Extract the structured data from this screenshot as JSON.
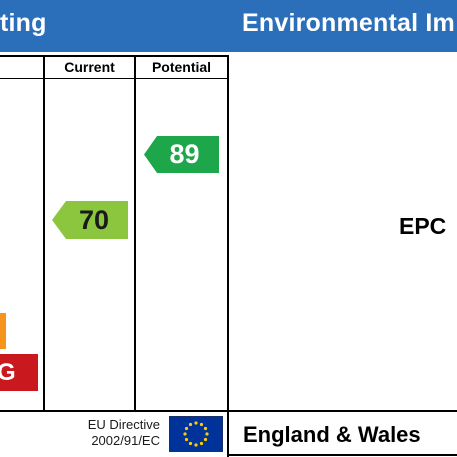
{
  "header": {
    "left_title": "ting",
    "right_title": "Environmental Im"
  },
  "table": {
    "col_current": "Current",
    "col_potential": "Potential"
  },
  "ratings": {
    "current": "70",
    "potential": "89",
    "current_color": "#8cc63f",
    "potential_color": "#1ea64b"
  },
  "bands": {
    "g_label": "G",
    "f_color": "#f7941d",
    "g_color": "#c9181e"
  },
  "footer": {
    "directive_line1": "EU Directive",
    "directive_line2": "2002/91/EC",
    "country": "England & Wales",
    "flag_icon": "eu-flag-icon"
  },
  "right_panel": {
    "label": "EPC"
  },
  "colors": {
    "header_bg": "#2b6fba",
    "eu_blue": "#003399",
    "eu_star": "#ffcc00"
  }
}
